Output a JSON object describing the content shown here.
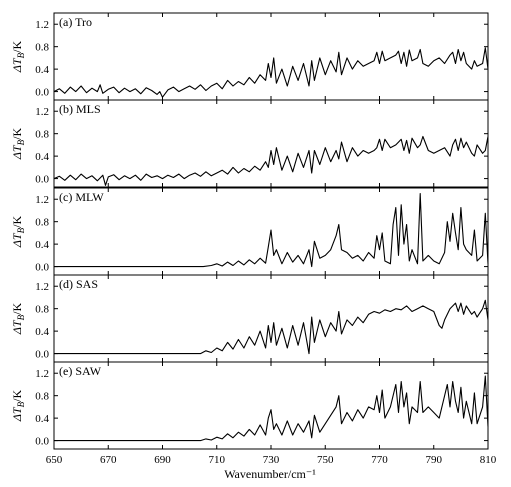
{
  "chart_data": {
    "type": "line",
    "xlabel": "Wavenumber/cm⁻¹",
    "xlim": [
      650,
      810
    ],
    "x_ticks": [
      650,
      670,
      690,
      710,
      730,
      750,
      770,
      790,
      810
    ],
    "y_ticks": [
      0.0,
      0.4,
      0.8,
      1.2
    ],
    "ylim": [
      -0.15,
      1.4
    ],
    "ylabel": "ΔT_B/K",
    "grid": false,
    "panels": [
      {
        "label": "(a) Tro",
        "series_x": [
          650,
          652,
          654,
          656,
          658,
          660,
          662,
          664,
          666,
          667,
          668,
          670,
          672,
          674,
          676,
          678,
          680,
          682,
          684,
          686,
          688,
          689,
          690,
          692,
          694,
          696,
          698,
          700,
          702,
          704,
          706,
          708,
          710,
          712,
          714,
          716,
          718,
          720,
          722,
          724,
          726,
          728,
          729,
          730,
          731,
          732,
          734,
          736,
          738,
          740,
          742,
          744,
          745,
          746,
          748,
          750,
          752,
          754,
          755,
          756,
          758,
          760,
          762,
          764,
          766,
          768,
          769,
          770,
          771,
          772,
          774,
          776,
          777,
          778,
          779,
          780,
          781,
          782,
          784,
          785,
          786,
          788,
          790,
          792,
          794,
          796,
          797,
          798,
          799,
          800,
          801,
          802,
          804,
          805,
          806,
          808,
          809,
          810
        ],
        "series_y": [
          0.0,
          0.05,
          -0.03,
          0.08,
          0.0,
          0.1,
          -0.02,
          0.06,
          0.0,
          0.12,
          -0.03,
          0.04,
          0.08,
          -0.02,
          0.06,
          0.0,
          0.05,
          -0.04,
          0.07,
          0.02,
          -0.05,
          0.0,
          -0.1,
          0.03,
          0.08,
          0.0,
          0.05,
          0.1,
          0.04,
          0.12,
          0.02,
          0.1,
          0.15,
          0.05,
          0.2,
          0.1,
          0.18,
          0.12,
          0.25,
          0.15,
          0.3,
          0.2,
          0.5,
          0.25,
          0.6,
          0.15,
          0.4,
          0.1,
          0.45,
          0.2,
          0.5,
          0.1,
          0.55,
          0.2,
          0.6,
          0.3,
          0.55,
          0.35,
          0.7,
          0.3,
          0.6,
          0.4,
          0.55,
          0.45,
          0.5,
          0.55,
          0.7,
          0.5,
          0.72,
          0.55,
          0.6,
          0.65,
          0.72,
          0.5,
          0.7,
          0.45,
          0.74,
          0.55,
          0.6,
          0.75,
          0.5,
          0.45,
          0.55,
          0.6,
          0.5,
          0.65,
          0.7,
          0.5,
          0.75,
          0.55,
          0.7,
          0.5,
          0.4,
          0.55,
          0.45,
          0.5,
          0.78,
          0.4
        ]
      },
      {
        "label": "(b) MLS",
        "series_x": [
          650,
          652,
          654,
          656,
          658,
          660,
          662,
          664,
          666,
          668,
          669,
          670,
          672,
          674,
          676,
          678,
          680,
          682,
          684,
          686,
          688,
          690,
          692,
          694,
          696,
          698,
          700,
          702,
          704,
          706,
          708,
          710,
          712,
          714,
          716,
          718,
          720,
          722,
          724,
          726,
          728,
          729,
          730,
          731,
          732,
          734,
          736,
          738,
          740,
          742,
          744,
          745,
          746,
          748,
          750,
          752,
          754,
          755,
          756,
          758,
          760,
          762,
          764,
          766,
          768,
          769,
          770,
          771,
          772,
          774,
          776,
          777,
          778,
          779,
          780,
          781,
          782,
          784,
          785,
          786,
          788,
          790,
          792,
          794,
          796,
          797,
          798,
          799,
          800,
          801,
          802,
          804,
          805,
          806,
          808,
          809,
          810
        ],
        "series_y": [
          0.0,
          0.04,
          -0.03,
          0.06,
          -0.02,
          0.08,
          0.0,
          0.05,
          -0.04,
          0.06,
          -0.12,
          0.03,
          0.07,
          -0.02,
          0.05,
          0.0,
          0.06,
          -0.03,
          0.08,
          0.02,
          0.05,
          0.0,
          0.06,
          0.02,
          0.08,
          0.0,
          0.06,
          0.1,
          0.04,
          0.12,
          0.05,
          0.1,
          0.15,
          0.08,
          0.2,
          0.1,
          0.18,
          0.12,
          0.22,
          0.15,
          0.3,
          0.2,
          0.5,
          0.25,
          0.55,
          0.15,
          0.4,
          0.12,
          0.45,
          0.2,
          0.5,
          0.1,
          0.5,
          0.25,
          0.55,
          0.3,
          0.5,
          0.35,
          0.65,
          0.3,
          0.55,
          0.4,
          0.5,
          0.45,
          0.5,
          0.55,
          0.7,
          0.5,
          0.7,
          0.55,
          0.6,
          0.65,
          0.7,
          0.5,
          0.68,
          0.45,
          0.72,
          0.55,
          0.6,
          0.75,
          0.5,
          0.45,
          0.5,
          0.55,
          0.4,
          0.6,
          0.7,
          0.5,
          0.72,
          0.55,
          0.65,
          0.45,
          0.4,
          0.6,
          0.45,
          0.5,
          0.75,
          0.38
        ]
      },
      {
        "label": "(c) MLW",
        "series_x": [
          650,
          660,
          670,
          680,
          690,
          700,
          705,
          708,
          710,
          712,
          714,
          716,
          718,
          720,
          722,
          724,
          726,
          728,
          729,
          730,
          731,
          732,
          734,
          736,
          738,
          740,
          742,
          744,
          745,
          746,
          748,
          750,
          752,
          754,
          755,
          756,
          758,
          760,
          762,
          764,
          766,
          768,
          769,
          770,
          771,
          772,
          774,
          775,
          776,
          777,
          778,
          779,
          780,
          781,
          782,
          784,
          785,
          786,
          788,
          790,
          792,
          794,
          795,
          796,
          797,
          798,
          799,
          800,
          801,
          802,
          804,
          805,
          806,
          808,
          809,
          810
        ],
        "series_y": [
          0.0,
          0.0,
          0.0,
          0.0,
          0.0,
          0.0,
          0.0,
          0.02,
          0.05,
          0.01,
          0.08,
          0.02,
          0.1,
          0.03,
          0.12,
          0.05,
          0.15,
          0.06,
          0.35,
          0.65,
          0.2,
          0.3,
          0.05,
          0.25,
          0.08,
          0.2,
          0.05,
          0.3,
          0.0,
          0.45,
          0.15,
          0.2,
          0.3,
          0.55,
          0.75,
          0.3,
          0.25,
          0.15,
          0.2,
          0.1,
          0.25,
          0.15,
          0.55,
          0.3,
          0.6,
          0.1,
          0.05,
          0.75,
          1.05,
          0.2,
          1.1,
          0.4,
          0.75,
          0.1,
          0.3,
          0.05,
          1.3,
          0.1,
          0.2,
          0.1,
          0.05,
          0.25,
          0.8,
          0.45,
          0.95,
          0.6,
          0.3,
          1.05,
          0.4,
          0.3,
          0.2,
          0.65,
          0.1,
          0.2,
          0.95,
          0.05
        ]
      },
      {
        "label": "(d) SAS",
        "series_x": [
          650,
          660,
          670,
          680,
          690,
          700,
          704,
          706,
          708,
          710,
          712,
          714,
          716,
          718,
          720,
          722,
          724,
          726,
          728,
          729,
          730,
          731,
          732,
          734,
          736,
          738,
          740,
          742,
          744,
          745,
          746,
          748,
          750,
          752,
          754,
          755,
          756,
          758,
          760,
          762,
          764,
          766,
          768,
          770,
          772,
          774,
          776,
          778,
          780,
          782,
          784,
          786,
          788,
          790,
          792,
          793,
          794,
          796,
          798,
          799,
          800,
          801,
          802,
          804,
          805,
          806,
          808,
          809,
          810
        ],
        "series_y": [
          0.0,
          0.0,
          0.0,
          0.0,
          0.0,
          0.0,
          0.0,
          0.05,
          0.02,
          0.1,
          0.05,
          0.2,
          0.08,
          0.25,
          0.1,
          0.3,
          0.15,
          0.4,
          0.1,
          0.5,
          0.2,
          0.55,
          0.15,
          0.45,
          0.1,
          0.5,
          0.15,
          0.55,
          0.0,
          0.65,
          0.2,
          0.6,
          0.3,
          0.55,
          0.4,
          0.75,
          0.35,
          0.6,
          0.5,
          0.65,
          0.55,
          0.7,
          0.75,
          0.72,
          0.78,
          0.75,
          0.8,
          0.78,
          0.85,
          0.75,
          0.8,
          0.85,
          0.8,
          0.75,
          0.5,
          0.45,
          0.6,
          0.8,
          0.9,
          0.75,
          0.9,
          0.7,
          0.85,
          0.7,
          0.75,
          0.65,
          0.8,
          0.95,
          0.6
        ]
      },
      {
        "label": "(e) SAW",
        "series_x": [
          650,
          660,
          670,
          680,
          690,
          700,
          704,
          706,
          708,
          710,
          712,
          714,
          716,
          718,
          720,
          722,
          724,
          726,
          728,
          729,
          730,
          731,
          732,
          734,
          736,
          738,
          740,
          742,
          744,
          745,
          746,
          748,
          750,
          752,
          754,
          755,
          756,
          758,
          760,
          762,
          764,
          766,
          768,
          769,
          770,
          771,
          772,
          774,
          776,
          777,
          778,
          779,
          780,
          781,
          782,
          784,
          785,
          786,
          788,
          790,
          792,
          794,
          795,
          796,
          797,
          798,
          799,
          800,
          801,
          802,
          804,
          805,
          806,
          808,
          809,
          810
        ],
        "series_y": [
          0.0,
          0.0,
          0.0,
          0.0,
          0.0,
          0.0,
          0.0,
          0.03,
          0.01,
          0.06,
          0.03,
          0.12,
          0.05,
          0.15,
          0.08,
          0.2,
          0.1,
          0.28,
          0.1,
          0.4,
          0.55,
          0.2,
          0.3,
          0.1,
          0.35,
          0.1,
          0.3,
          0.15,
          0.35,
          0.05,
          0.45,
          0.15,
          0.3,
          0.45,
          0.6,
          0.8,
          0.3,
          0.5,
          0.35,
          0.55,
          0.4,
          0.6,
          0.55,
          0.8,
          0.5,
          0.9,
          0.4,
          0.6,
          1.0,
          0.5,
          1.05,
          0.6,
          0.85,
          0.3,
          0.6,
          0.5,
          1.05,
          0.5,
          0.6,
          0.5,
          0.4,
          0.8,
          1.0,
          0.6,
          1.05,
          0.7,
          0.5,
          0.95,
          0.4,
          0.7,
          0.3,
          0.85,
          0.3,
          0.6,
          1.15,
          0.25
        ]
      }
    ]
  }
}
